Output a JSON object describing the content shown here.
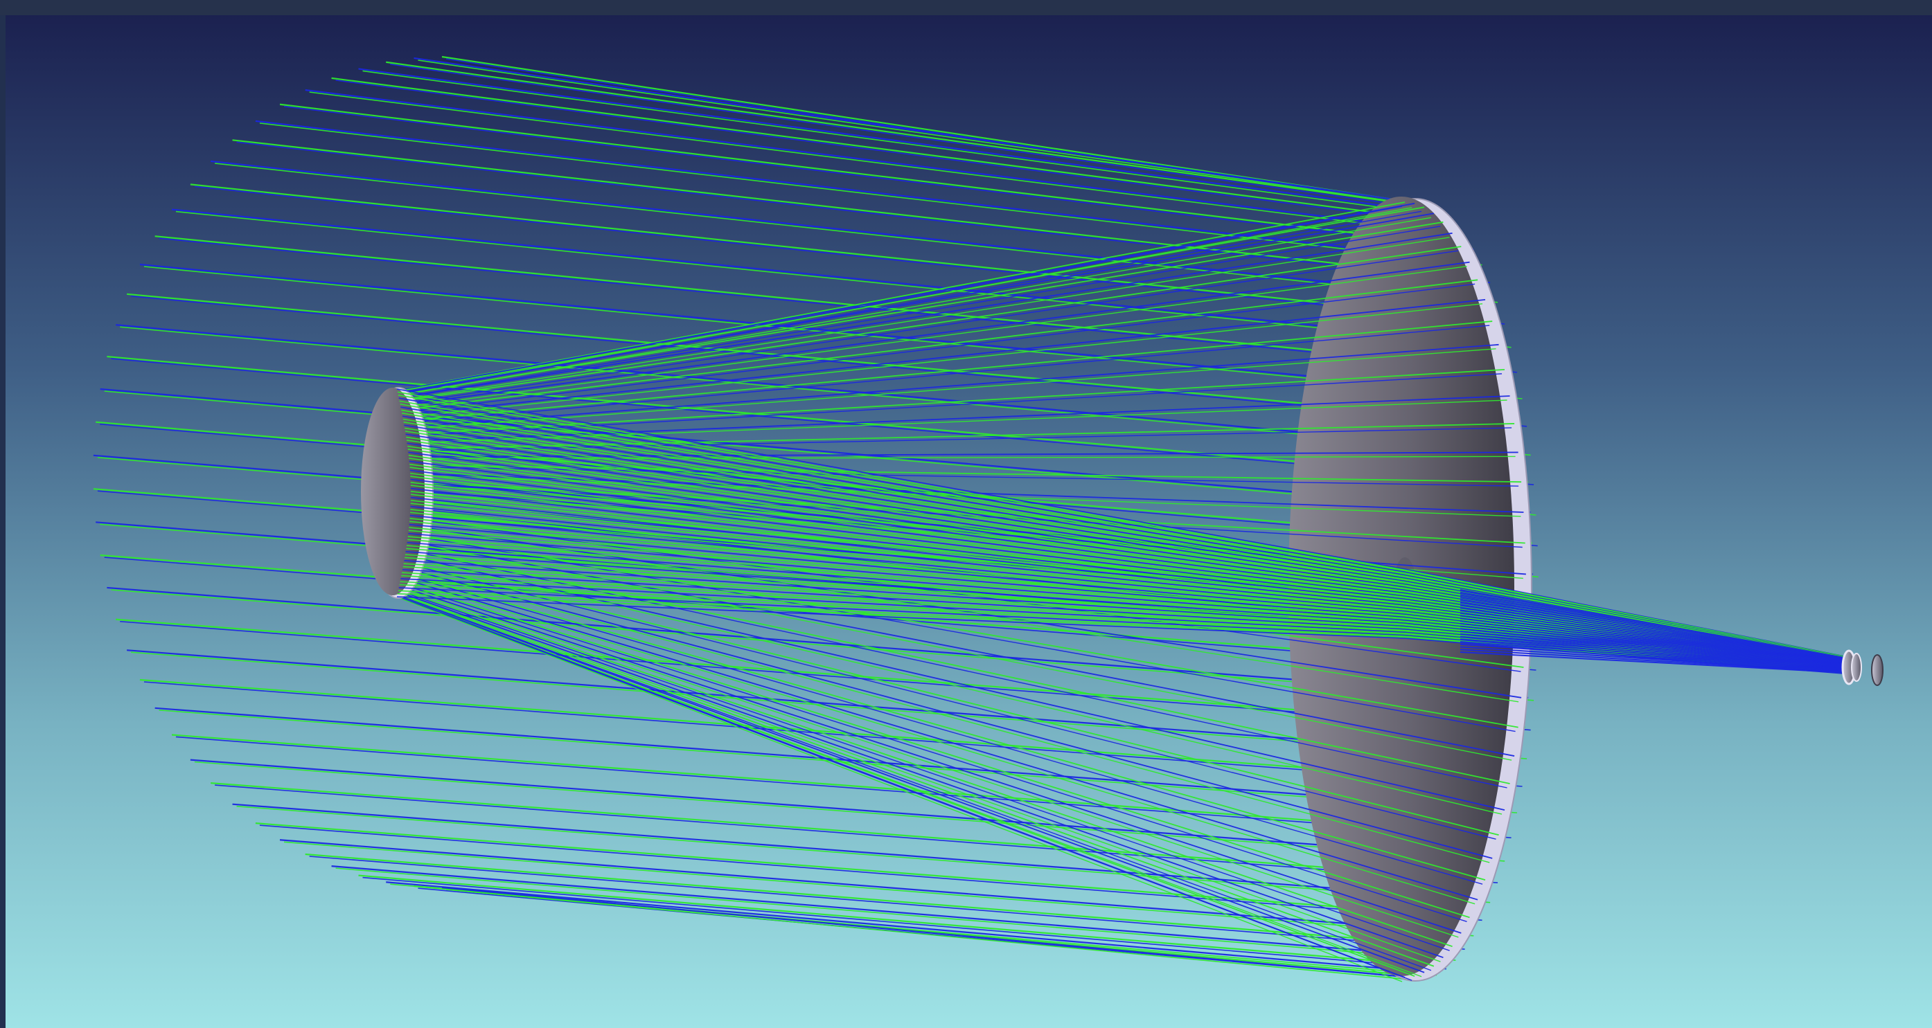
{
  "viewport": {
    "background_top_color": "#1b2150",
    "background_bottom_color": "#9fe3e6",
    "ray_colors": {
      "green_ray": "#2ee82e",
      "blue_ray": "#1a28e0"
    },
    "mirror_colors": {
      "face_light": "#8a8792",
      "face_dark": "#3f3d47",
      "edge": "#d6d4ea"
    },
    "components": [
      "primary-mirror",
      "secondary-mirror",
      "focal-plane-lens-group"
    ]
  }
}
